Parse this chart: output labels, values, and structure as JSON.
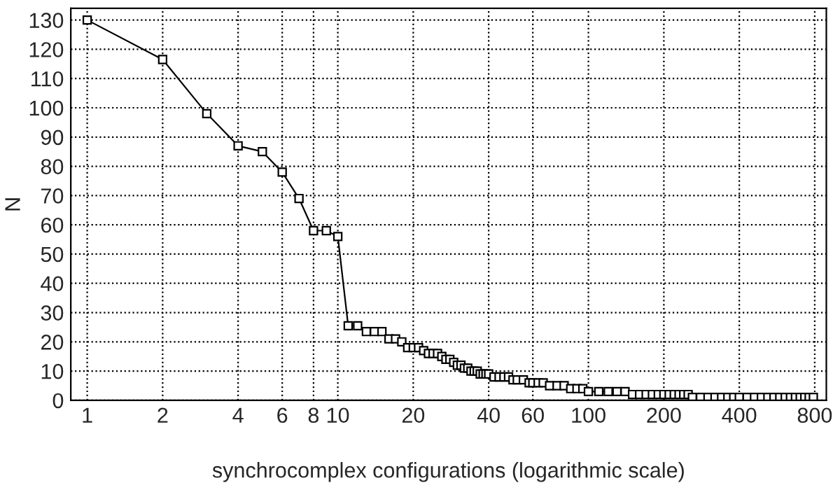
{
  "chart_data": {
    "type": "line",
    "xlabel": "synchrocomplex configurations (logarithmic scale)",
    "ylabel": "N",
    "log": "x",
    "grid": true,
    "marker": "square",
    "line_style": "solid",
    "xlim": [
      0.86,
      890
    ],
    "xticks": [
      1,
      2,
      4,
      6,
      8,
      10,
      20,
      40,
      60,
      100,
      200,
      400,
      800
    ],
    "ylim": [
      0,
      134
    ],
    "yticks": [
      0,
      10,
      20,
      30,
      40,
      50,
      60,
      70,
      80,
      90,
      100,
      110,
      120,
      130
    ],
    "series": [
      {
        "color": "#000000",
        "x": [
          1,
          2,
          3,
          4,
          5,
          6,
          7,
          8,
          9,
          10,
          11,
          12,
          13,
          14,
          15,
          16,
          17,
          18,
          19,
          20,
          21,
          22,
          23,
          24,
          25,
          26,
          27,
          28,
          29,
          30,
          31,
          32,
          33,
          34,
          35,
          36,
          37,
          38,
          39,
          40,
          42,
          44,
          46,
          48,
          50,
          52,
          55,
          58,
          60,
          63,
          66,
          70,
          75,
          80,
          85,
          90,
          95,
          100,
          110,
          120,
          130,
          140,
          150,
          160,
          170,
          180,
          190,
          200,
          210,
          220,
          230,
          240,
          250,
          260,
          280,
          300,
          320,
          340,
          360,
          380,
          400,
          430,
          460,
          490,
          520,
          550,
          580,
          610,
          640,
          670,
          700,
          730,
          760,
          790
        ],
        "values": [
          130,
          116.5,
          98,
          87,
          85,
          78,
          69,
          58,
          58,
          56,
          25.5,
          25.5,
          23.5,
          23.5,
          23.5,
          21,
          21,
          20,
          18,
          18,
          18,
          17,
          16,
          16,
          16,
          15,
          14,
          14,
          13,
          12,
          12,
          11,
          11,
          10,
          10,
          10,
          9,
          9,
          9,
          9,
          8,
          8,
          8,
          8,
          7,
          7,
          7,
          6,
          6,
          6,
          6,
          5,
          5,
          5,
          4,
          4,
          4,
          3,
          3,
          3,
          3,
          3,
          2,
          2,
          2,
          2,
          2,
          2,
          2,
          2,
          2,
          2,
          2,
          1,
          1,
          1,
          1,
          1,
          1,
          1,
          1,
          1,
          1,
          1,
          1,
          1,
          1,
          1,
          1,
          1,
          1,
          1,
          1,
          1
        ]
      }
    ]
  }
}
